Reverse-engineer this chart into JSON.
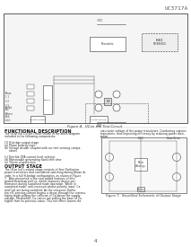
{
  "background_color": "#ffffff",
  "page_bg": "#ffffff",
  "header_text": "UC3717A",
  "header_fontsize": 4.5,
  "border_color": "#000000",
  "figure1_title": "Figure 4.  UCon trol Test Circuit",
  "figure2_title": "Figure 7.  Simplified Schematic of Output Stage",
  "section1_title": "FUNCTIONAL DESCRIPTION",
  "section1_body": "The UCon trol's drive circuit shown in the block diagram\nincluded in the following components:\n\n(1) H-bridge output stage\n(a) Phase polarity logic\n(b) Voltage divider coupled with cur rent sensing compa-\n      rators\n\n(c) Tem ble OTA current level selector\n(d) Monostable generating fixed shift time\n(e) Therm al protection",
  "section2_title": "OUTPUT STAGE",
  "section2_body": "The UCon trol's output stage consists of four Darlington\npower transistors and considered switching during phase di-\nvider. In a full H-bridge configuration, as shown in Figure\n7.  Also presented is the new added features of Inte-\ngrated bootstrap pull up, which improves device per-\nformance during sustained mode operation. While in\nsustained mode, anti-crossover phase polarity input. Ca\nand Ca2 are being switched. As the crossover Darlin-\nton off, sensing current begins a decay through the commu-\ntating diode pulling the collector of Ca above the supply\nvoltage. Meanwhile, Ca comes are pulling the base of Ca\nhigher than its previous value. This net effect lowers the",
  "section2_body2": "saturation voltage of the power transistors. Conducting substra-\ntransistors, thus improving efficiency by reducing power dissi-\npation.",
  "footer_text": "4",
  "main_diagram_color": "#dddddd",
  "small_diagram_color": "#dddddd"
}
